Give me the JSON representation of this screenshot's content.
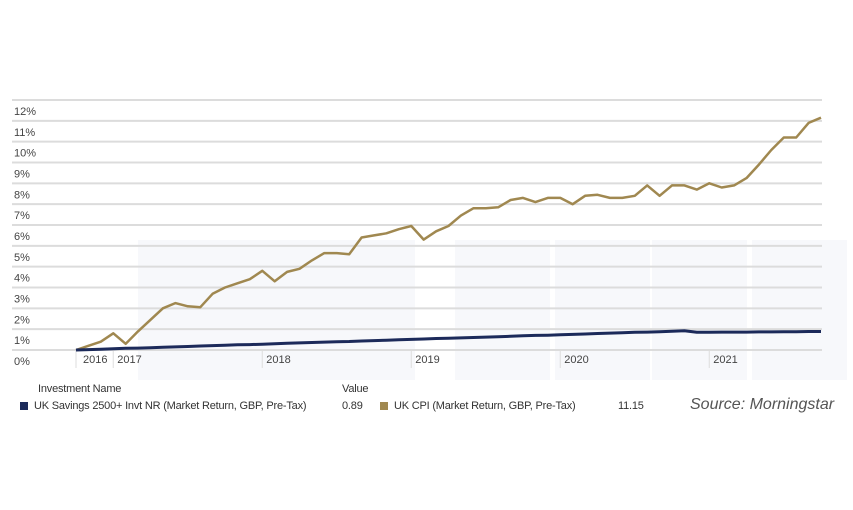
{
  "chart_data": {
    "type": "line",
    "title": "",
    "xlabel": "",
    "ylabel": "",
    "ylim": [
      0,
      12
    ],
    "y_ticks": [
      "0%",
      "1%",
      "2%",
      "3%",
      "4%",
      "5%",
      "6%",
      "7%",
      "8%",
      "9%",
      "10%",
      "11%",
      "12%"
    ],
    "x_ticks": [
      {
        "label": "2016",
        "month": 0
      },
      {
        "label": "2017",
        "month": 3
      },
      {
        "label": "2018",
        "month": 15
      },
      {
        "label": "2019",
        "month": 27
      },
      {
        "label": "2020",
        "month": 39
      },
      {
        "label": "2021",
        "month": 51
      }
    ],
    "x_months": 61,
    "grid": true,
    "series": [
      {
        "name": "UK Savings 2500+ Invt NR (Market Return, GBP, Pre-Tax)",
        "color": "#1c2a5a",
        "final_value": "0.89",
        "values": [
          0,
          0.02,
          0.04,
          0.06,
          0.08,
          0.09,
          0.11,
          0.13,
          0.15,
          0.17,
          0.19,
          0.21,
          0.23,
          0.25,
          0.26,
          0.28,
          0.3,
          0.32,
          0.34,
          0.36,
          0.38,
          0.4,
          0.41,
          0.43,
          0.45,
          0.47,
          0.49,
          0.51,
          0.53,
          0.55,
          0.56,
          0.58,
          0.6,
          0.62,
          0.64,
          0.66,
          0.68,
          0.7,
          0.71,
          0.73,
          0.75,
          0.77,
          0.79,
          0.81,
          0.83,
          0.85,
          0.86,
          0.88,
          0.9,
          0.92,
          0.85,
          0.85,
          0.86,
          0.86,
          0.86,
          0.87,
          0.87,
          0.88,
          0.88,
          0.89,
          0.89
        ]
      },
      {
        "name": "UK CPI (Market Return, GBP, Pre-Tax)",
        "color": "#a08850",
        "final_value": "11.15",
        "values": [
          0,
          0.2,
          0.4,
          0.8,
          0.3,
          0.9,
          1.45,
          2.0,
          2.25,
          2.1,
          2.05,
          2.7,
          3.0,
          3.2,
          3.4,
          3.8,
          3.3,
          3.75,
          3.9,
          4.3,
          4.65,
          4.65,
          4.6,
          5.4,
          5.5,
          5.6,
          5.8,
          5.95,
          5.3,
          5.7,
          5.95,
          6.45,
          6.8,
          6.8,
          6.85,
          7.2,
          7.3,
          7.1,
          7.3,
          7.3,
          7.0,
          7.4,
          7.45,
          7.3,
          7.3,
          7.4,
          7.9,
          7.4,
          7.9,
          7.9,
          7.7,
          8.0,
          7.8,
          7.9,
          8.25,
          8.9,
          9.6,
          10.2,
          10.2,
          10.9,
          11.15
        ]
      }
    ]
  },
  "legend": {
    "name_header": "Investment Name",
    "value_header": "Value"
  },
  "source": "Source: Morningstar"
}
